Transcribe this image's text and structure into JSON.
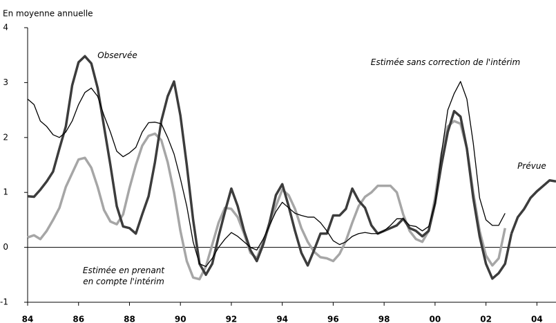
{
  "chart_data": {
    "type": "line",
    "y_label": "En moyenne annuelle",
    "x": [
      84,
      84.25,
      84.5,
      84.75,
      85,
      85.25,
      85.5,
      85.75,
      86,
      86.25,
      86.5,
      86.75,
      87,
      87.25,
      87.5,
      87.75,
      88,
      88.25,
      88.5,
      88.75,
      89,
      89.25,
      89.5,
      89.75,
      90,
      90.25,
      90.5,
      90.75,
      91,
      91.25,
      91.5,
      91.75,
      92,
      92.25,
      92.5,
      92.75,
      93,
      93.25,
      93.5,
      93.75,
      94,
      94.25,
      94.5,
      94.75,
      95,
      95.25,
      95.5,
      95.75,
      96,
      96.25,
      96.5,
      96.75,
      97,
      97.25,
      97.5,
      97.75,
      98,
      98.25,
      98.5,
      98.75,
      99,
      99.25,
      99.5,
      99.75,
      100,
      100.25,
      100.5,
      100.75,
      101,
      101.25,
      101.5,
      101.75,
      102,
      102.25,
      102.5,
      102.75,
      103,
      103.25,
      103.5,
      103.75,
      104,
      104.25,
      104.5,
      104.75
    ],
    "series": [
      {
        "name": "Estimée en prenant en compte l'intérim",
        "color": "#a6a6a6",
        "width": 3.5,
        "values": [
          0.18,
          0.22,
          0.15,
          0.3,
          0.5,
          0.72,
          1.1,
          1.35,
          1.6,
          1.63,
          1.45,
          1.1,
          0.68,
          0.47,
          0.42,
          0.6,
          1.08,
          1.5,
          1.85,
          2.03,
          2.07,
          1.95,
          1.55,
          1.0,
          0.3,
          -0.25,
          -0.55,
          -0.58,
          -0.35,
          0.05,
          0.45,
          0.72,
          0.7,
          0.55,
          0.25,
          -0.1,
          -0.2,
          0.1,
          0.4,
          0.75,
          1.05,
          0.95,
          0.7,
          0.35,
          0.1,
          -0.08,
          -0.18,
          -0.2,
          -0.25,
          -0.12,
          0.12,
          0.45,
          0.75,
          0.92,
          1.0,
          1.12,
          1.12,
          1.12,
          1.0,
          0.6,
          0.3,
          0.15,
          0.1,
          0.3,
          0.9,
          1.7,
          2.2,
          2.3,
          2.25,
          1.8,
          1.0,
          0.3,
          -0.15,
          -0.33,
          -0.2,
          0.35,
          null,
          null,
          null,
          null,
          null,
          null,
          null,
          null
        ]
      },
      {
        "name": "Observée",
        "color": "#3c3c3c",
        "width": 3.5,
        "values": [
          0.93,
          0.92,
          1.05,
          1.2,
          1.38,
          1.8,
          2.2,
          2.95,
          3.37,
          3.48,
          3.35,
          2.9,
          2.2,
          1.5,
          0.75,
          0.38,
          0.35,
          0.25,
          0.6,
          0.93,
          1.55,
          2.3,
          2.75,
          3.02,
          2.4,
          1.5,
          0.5,
          -0.3,
          -0.5,
          -0.3,
          0.2,
          0.65,
          1.07,
          0.75,
          0.3,
          -0.05,
          -0.25,
          0.05,
          0.45,
          0.95,
          1.15,
          0.75,
          0.3,
          -0.1,
          -0.33,
          -0.05,
          0.25,
          0.25,
          0.58,
          0.58,
          0.7,
          1.07,
          0.85,
          0.72,
          0.4,
          0.25,
          0.3,
          0.35,
          0.4,
          0.52,
          0.35,
          0.3,
          0.2,
          0.3,
          0.8,
          1.5,
          2.1,
          2.48,
          2.38,
          1.8,
          0.9,
          0.2,
          -0.3,
          -0.57,
          -0.47,
          -0.3,
          0.25,
          null,
          null,
          null,
          null,
          null,
          null,
          null
        ]
      },
      {
        "name": "Estimée sans correction de l'intérim",
        "color": "#000000",
        "width": 1.3,
        "values": [
          2.7,
          2.6,
          2.3,
          2.2,
          2.05,
          2.0,
          2.1,
          2.3,
          2.6,
          2.82,
          2.9,
          2.75,
          2.4,
          2.1,
          1.75,
          1.65,
          1.72,
          1.82,
          2.1,
          2.27,
          2.28,
          2.25,
          2.0,
          1.7,
          1.25,
          0.75,
          0.1,
          -0.3,
          -0.35,
          -0.2,
          0.0,
          0.15,
          0.27,
          0.2,
          0.1,
          0.0,
          -0.05,
          0.15,
          0.4,
          0.65,
          0.82,
          0.72,
          0.62,
          0.58,
          0.55,
          0.55,
          0.45,
          0.3,
          0.12,
          0.05,
          0.1,
          0.2,
          0.25,
          0.27,
          0.25,
          0.25,
          0.3,
          0.4,
          0.52,
          0.52,
          0.4,
          0.38,
          0.3,
          0.38,
          0.8,
          1.7,
          2.5,
          2.8,
          3.02,
          2.7,
          1.9,
          0.9,
          0.5,
          0.4,
          0.4,
          0.62,
          null,
          null,
          null,
          null,
          null,
          null,
          null,
          null
        ]
      },
      {
        "name": "Prévue",
        "color": "#3c3c3c",
        "width": 3.5,
        "values": [
          null,
          null,
          null,
          null,
          null,
          null,
          null,
          null,
          null,
          null,
          null,
          null,
          null,
          null,
          null,
          null,
          null,
          null,
          null,
          null,
          null,
          null,
          null,
          null,
          null,
          null,
          null,
          null,
          null,
          null,
          null,
          null,
          null,
          null,
          null,
          null,
          null,
          null,
          null,
          null,
          null,
          null,
          null,
          null,
          null,
          null,
          null,
          null,
          null,
          null,
          null,
          null,
          null,
          null,
          null,
          null,
          null,
          null,
          null,
          null,
          null,
          null,
          null,
          null,
          null,
          null,
          null,
          null,
          null,
          null,
          null,
          null,
          null,
          null,
          null,
          null,
          0.25,
          0.55,
          0.7,
          0.9,
          1.02,
          1.12,
          1.22,
          1.2
        ]
      }
    ],
    "xlim": [
      84,
      104.75
    ],
    "xticks": [
      84,
      86,
      88,
      90,
      92,
      94,
      96,
      98,
      {
        "value": 100,
        "label": "00"
      },
      {
        "value": 102,
        "label": "02"
      },
      {
        "value": 104,
        "label": "04"
      }
    ],
    "ylim": [
      -1,
      4
    ],
    "yticks": [
      -1,
      0,
      1,
      2,
      3,
      4
    ],
    "grid": false
  }
}
